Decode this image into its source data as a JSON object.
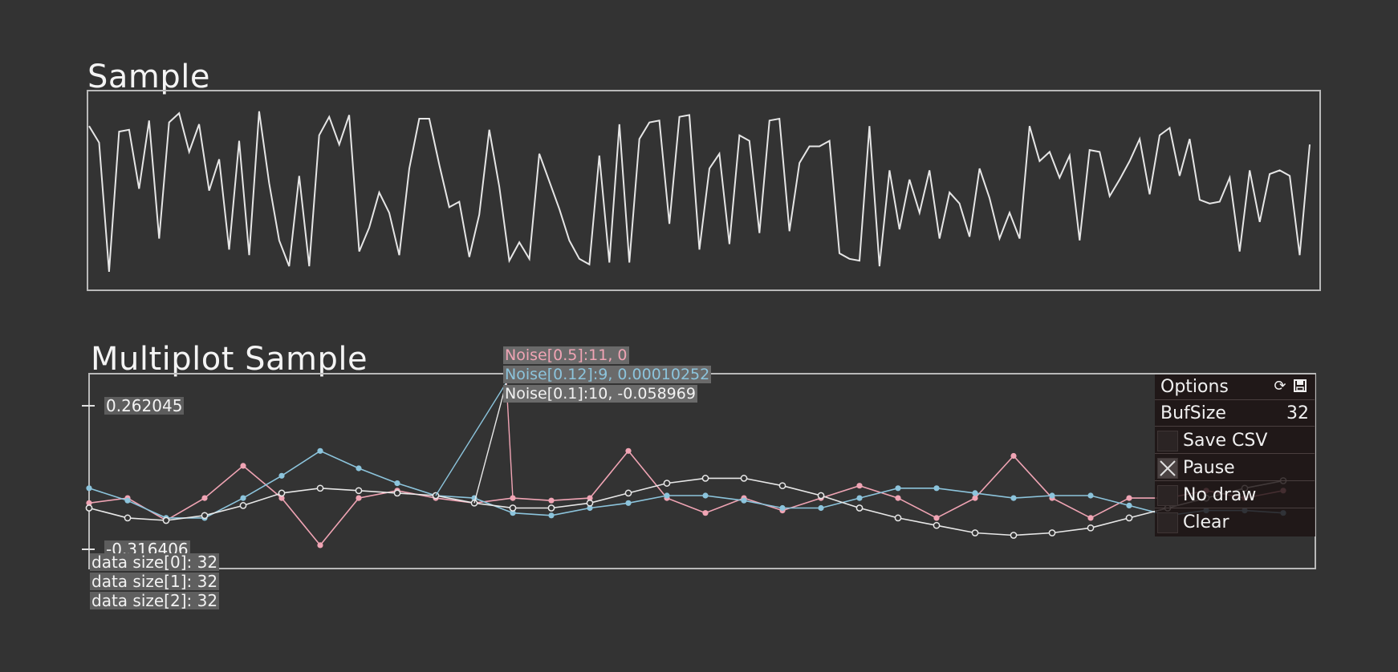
{
  "chart_data": [
    {
      "type": "line",
      "title": "Sample",
      "series": [
        {
          "values": [
            0.86,
            0.77,
            0.07,
            0.83,
            0.84,
            0.52,
            0.89,
            0.25,
            0.88,
            0.93,
            0.72,
            0.87,
            0.51,
            0.68,
            0.19,
            0.78,
            0.16,
            0.94,
            0.55,
            0.24,
            0.1,
            0.59,
            0.1,
            0.81,
            0.91,
            0.76,
            0.92,
            0.18,
            0.31,
            0.5,
            0.39,
            0.16,
            0.63,
            0.9,
            0.9,
            0.65,
            0.42,
            0.45,
            0.15,
            0.38,
            0.84,
            0.53,
            0.13,
            0.23,
            0.14,
            0.71,
            0.56,
            0.41,
            0.24,
            0.14,
            0.11,
            0.7,
            0.12,
            0.87,
            0.12,
            0.79,
            0.88,
            0.89,
            0.33,
            0.91,
            0.92,
            0.19,
            0.63,
            0.71,
            0.22,
            0.81,
            0.78,
            0.28,
            0.89,
            0.9,
            0.29,
            0.66,
            0.75,
            0.75,
            0.78,
            0.17,
            0.14,
            0.13,
            0.86,
            0.1,
            0.62,
            0.3,
            0.57,
            0.39,
            0.62,
            0.25,
            0.5,
            0.44,
            0.26,
            0.63,
            0.47,
            0.25,
            0.39,
            0.25,
            0.86,
            0.67,
            0.72,
            0.58,
            0.7,
            0.24,
            0.73,
            0.72,
            0.48,
            0.57,
            0.67,
            0.79,
            0.49,
            0.81,
            0.85,
            0.59,
            0.79,
            0.46,
            0.44,
            0.45,
            0.58,
            0.18,
            0.62,
            0.34,
            0.6,
            0.62,
            0.59,
            0.16,
            0.76
          ],
          "color": "#e6e6e6"
        }
      ]
    },
    {
      "type": "line",
      "title": "Multiplot Sample",
      "ylim": [
        -0.316406,
        0.262045
      ],
      "y_tick_labels": [
        "0.262045",
        "-0.316406"
      ],
      "series": [
        {
          "name": "Noise[0.5]",
          "color": "#f0a4b4",
          "values": [
            -0.13,
            -0.11,
            -0.2,
            -0.11,
            0.02,
            -0.11,
            -0.3,
            -0.11,
            -0.08,
            -0.11,
            -0.13,
            -0.11,
            -0.12,
            -0.11,
            0.08,
            -0.11,
            -0.17,
            -0.11,
            -0.16,
            -0.11,
            -0.06,
            -0.11,
            -0.19,
            -0.11,
            0.06,
            -0.11,
            -0.19,
            -0.11,
            -0.11,
            -0.08,
            -0.11,
            -0.08
          ]
        },
        {
          "name": "Noise[0.12]",
          "color": "#8cc4dc",
          "values": [
            -0.07,
            -0.12,
            -0.19,
            -0.19,
            -0.11,
            -0.02,
            0.08,
            0.01,
            -0.05,
            -0.1,
            -0.11,
            -0.17,
            -0.18,
            -0.15,
            -0.13,
            -0.1,
            -0.1,
            -0.12,
            -0.15,
            -0.15,
            -0.11,
            -0.07,
            -0.07,
            -0.09,
            -0.11,
            -0.1,
            -0.1,
            -0.14,
            -0.18,
            -0.16,
            -0.16,
            -0.17
          ]
        },
        {
          "name": "Noise[0.1]",
          "color": "#e8e8e8",
          "values": [
            -0.15,
            -0.19,
            -0.2,
            -0.18,
            -0.14,
            -0.09,
            -0.07,
            -0.08,
            -0.09,
            -0.1,
            -0.13,
            -0.15,
            -0.15,
            -0.13,
            -0.09,
            -0.05,
            -0.03,
            -0.03,
            -0.06,
            -0.1,
            -0.15,
            -0.19,
            -0.22,
            -0.25,
            -0.26,
            -0.25,
            -0.23,
            -0.19,
            -0.15,
            -0.11,
            -0.07,
            -0.04
          ]
        }
      ],
      "hover_labels": [
        {
          "text": "Noise[0.5]:11, 0",
          "color": "#f0a4b4"
        },
        {
          "text": "Noise[0.12]:9, 0.00010252",
          "color": "#8cc4dc"
        },
        {
          "text": "Noise[0.1]:10, -0.058969",
          "color": "#f2f2f2"
        }
      ],
      "info": [
        "data size[0]: 32",
        "data size[1]: 32",
        "data size[2]: 32"
      ]
    }
  ],
  "options": {
    "header": "Options",
    "refresh_icon": "refresh-icon",
    "save_icon": "save-icon",
    "bufsize_label": "BufSize",
    "bufsize_value": "32",
    "items": [
      {
        "label": "Save CSV",
        "checked": false
      },
      {
        "label": "Pause",
        "checked": true
      },
      {
        "label": "No draw",
        "checked": false
      },
      {
        "label": "Clear",
        "checked": false
      }
    ]
  }
}
